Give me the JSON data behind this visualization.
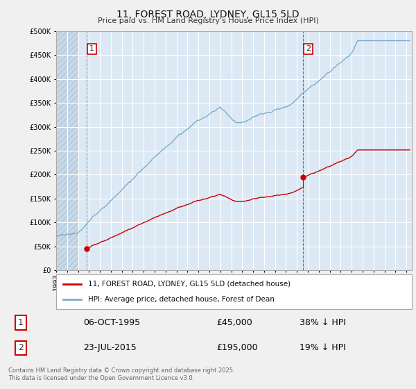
{
  "title": "11, FOREST ROAD, LYDNEY, GL15 5LD",
  "subtitle": "Price paid vs. HM Land Registry's House Price Index (HPI)",
  "legend_line1": "11, FOREST ROAD, LYDNEY, GL15 5LD (detached house)",
  "legend_line2": "HPI: Average price, detached house, Forest of Dean",
  "purchase1_label": "1",
  "purchase1_date": "06-OCT-1995",
  "purchase1_price": "£45,000",
  "purchase1_hpi": "38% ↓ HPI",
  "purchase1_year": 1995.76,
  "purchase1_value": 45000,
  "purchase2_label": "2",
  "purchase2_date": "23-JUL-2015",
  "purchase2_price": "£195,000",
  "purchase2_hpi": "19% ↓ HPI",
  "purchase2_year": 2015.55,
  "purchase2_value": 195000,
  "red_color": "#cc0000",
  "blue_color": "#7aadcf",
  "background_color": "#f0f0f0",
  "plot_bg_color": "#dce9f5",
  "grid_color": "#ffffff",
  "ylim": [
    0,
    500000
  ],
  "xlim_start": 1993,
  "xlim_end": 2025.5,
  "footer": "Contains HM Land Registry data © Crown copyright and database right 2025.\nThis data is licensed under the Open Government Licence v3.0."
}
